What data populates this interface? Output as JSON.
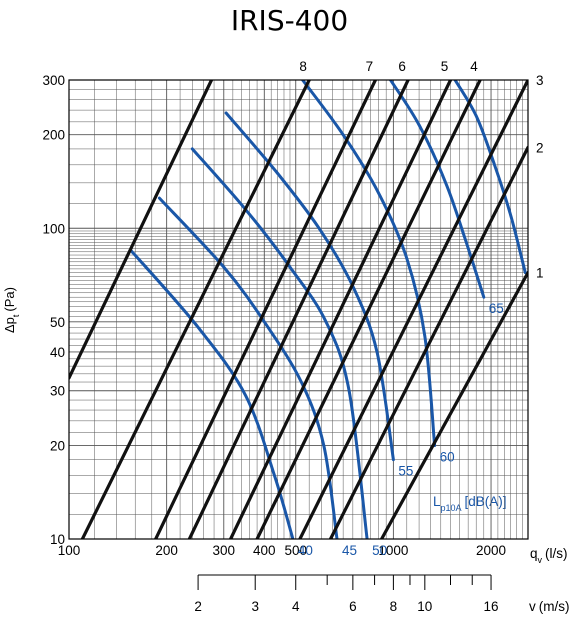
{
  "chart_data": {
    "type": "line",
    "title": "IRIS-400",
    "xlabel": "q",
    "xlabel_sub": "v",
    "xlabel_unit": "(l/s)",
    "ylabel": "Δp",
    "ylabel_sub": "t",
    "ylabel_unit": "(Pa)",
    "x_scale": "log",
    "y_scale": "log",
    "xlim": [
      100,
      2600
    ],
    "ylim": [
      10,
      300
    ],
    "grid": true,
    "x_tick_labels": [
      {
        "value": 100,
        "label": "100"
      },
      {
        "value": 200,
        "label": "200"
      },
      {
        "value": 300,
        "label": "300"
      },
      {
        "value": 400,
        "label": "400"
      },
      {
        "value": 500,
        "label": "500"
      },
      {
        "value": 1000,
        "label": "1000"
      },
      {
        "value": 2000,
        "label": "2000"
      }
    ],
    "y_tick_labels": [
      {
        "value": 10,
        "label": "10"
      },
      {
        "value": 20,
        "label": "20"
      },
      {
        "value": 30,
        "label": "30"
      },
      {
        "value": 40,
        "label": "40"
      },
      {
        "value": 50,
        "label": "50"
      },
      {
        "value": 100,
        "label": "100"
      },
      {
        "value": 200,
        "label": "200"
      },
      {
        "value": 300,
        "label": "300"
      }
    ],
    "velocity_axis": {
      "label": "v",
      "unit": "(m/s)",
      "ticks": [
        {
          "value": 2,
          "label": "2"
        },
        {
          "value": 3,
          "label": "3"
        },
        {
          "value": 4,
          "label": "4"
        },
        {
          "value": 5,
          "label": ""
        },
        {
          "value": 6,
          "label": "6"
        },
        {
          "value": 7,
          "label": ""
        },
        {
          "value": 8,
          "label": "8"
        },
        {
          "value": 9,
          "label": ""
        },
        {
          "value": 10,
          "label": "10"
        },
        {
          "value": 12,
          "label": ""
        },
        {
          "value": 14,
          "label": ""
        },
        {
          "value": 16,
          "label": "16"
        }
      ]
    },
    "damper_lines": [
      {
        "label": "1",
        "points": [
          [
            920,
            10
          ],
          [
            2600,
            72
          ]
        ]
      },
      {
        "label": "2",
        "points": [
          [
            640,
            10
          ],
          [
            2600,
            182
          ]
        ]
      },
      {
        "label": "3",
        "points": [
          [
            515,
            10
          ],
          [
            2600,
            300
          ]
        ]
      },
      {
        "label": "4",
        "points": [
          [
            380,
            10
          ],
          [
            1850,
            300
          ]
        ]
      },
      {
        "label": "5",
        "points": [
          [
            315,
            10
          ],
          [
            1500,
            300
          ]
        ]
      },
      {
        "label": "6",
        "points": [
          [
            235,
            10
          ],
          [
            1110,
            300
          ]
        ]
      },
      {
        "label": "7",
        "points": [
          [
            185,
            10
          ],
          [
            880,
            300
          ]
        ]
      },
      {
        "label": "8",
        "points": [
          [
            110,
            10
          ],
          [
            550,
            300
          ]
        ]
      },
      {
        "label": "",
        "points": [
          [
            100,
            33
          ],
          [
            275,
            300
          ]
        ]
      }
    ],
    "sound_curves": [
      {
        "label": "40",
        "points": [
          [
            155,
            85
          ],
          [
            250,
            48
          ],
          [
            350,
            29
          ],
          [
            430,
            16
          ],
          [
            490,
            10
          ]
        ]
      },
      {
        "label": "45",
        "points": [
          [
            190,
            125
          ],
          [
            300,
            75
          ],
          [
            400,
            50
          ],
          [
            520,
            32
          ],
          [
            610,
            20
          ],
          [
            670,
            10
          ]
        ]
      },
      {
        "label": "50",
        "points": [
          [
            240,
            180
          ],
          [
            350,
            115
          ],
          [
            480,
            75
          ],
          [
            620,
            50
          ],
          [
            730,
            30
          ],
          [
            830,
            10
          ]
        ]
      },
      {
        "label": "55",
        "points": [
          [
            305,
            235
          ],
          [
            440,
            150
          ],
          [
            590,
            100
          ],
          [
            750,
            65
          ],
          [
            890,
            40
          ],
          [
            1000,
            18
          ]
        ]
      },
      {
        "label": "60",
        "points": [
          [
            525,
            300
          ],
          [
            700,
            200
          ],
          [
            900,
            130
          ],
          [
            1100,
            80
          ],
          [
            1250,
            45
          ],
          [
            1340,
            20
          ]
        ]
      },
      {
        "label": "65",
        "points": [
          [
            980,
            300
          ],
          [
            1200,
            215
          ],
          [
            1450,
            140
          ],
          [
            1650,
            95
          ],
          [
            1900,
            60
          ]
        ]
      },
      {
        "label": "",
        "points": [
          [
            1550,
            300
          ],
          [
            1800,
            230
          ],
          [
            2050,
            160
          ],
          [
            2300,
            110
          ],
          [
            2550,
            72
          ]
        ]
      }
    ],
    "sound_label": "L",
    "sound_label_sub": "p10A",
    "sound_label_unit": "[dB(A)]",
    "colors": {
      "damper": "#111111",
      "sound": "#1a57a8",
      "grid": "#555555"
    }
  }
}
